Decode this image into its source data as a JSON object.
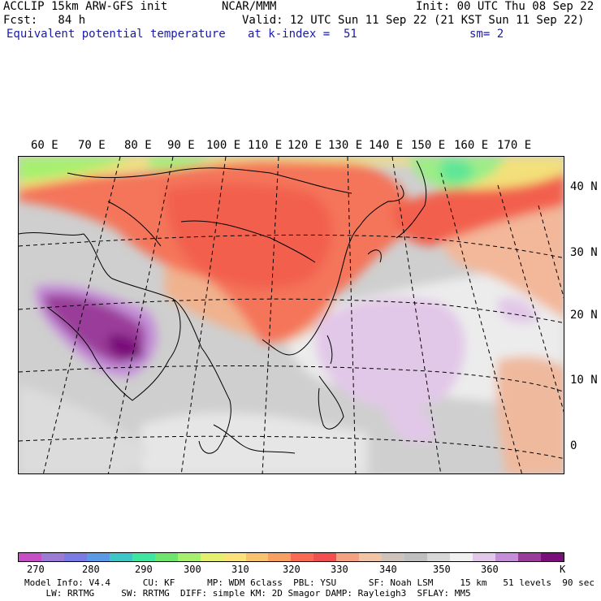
{
  "header": {
    "line1_left": "ACCLIP 15km ARW-GFS init",
    "line1_mid": "NCAR/MMM",
    "line1_right": "Init: 00 UTC Thu 08 Sep 22",
    "line2_left": "Fcst:   84 h",
    "line2_right": "Valid: 12 UTC Sun 11 Sep 22 (21 KST Sun 11 Sep 22)",
    "line3_left": "Equivalent potential temperature",
    "line3_mid": "at k-index =  51",
    "line3_right": "sm= 2"
  },
  "map": {
    "lon_labels": [
      "60 E",
      "70 E",
      "80 E",
      "90 E",
      "100 E",
      "110 E",
      "120 E",
      "130 E",
      "140 E",
      "150 E",
      "160 E",
      "170 E"
    ],
    "lat_labels": [
      "40 N",
      "30 N",
      "20 N",
      "10 N",
      "0"
    ]
  },
  "colorbar": {
    "colors": [
      "#c64fc6",
      "#9c7bd6",
      "#7b7be6",
      "#5a9ae6",
      "#3fc7c7",
      "#3fe6a0",
      "#6ee66e",
      "#a6f06e",
      "#e6f070",
      "#fbe27a",
      "#f9c36e",
      "#f9a060",
      "#f96a52",
      "#f25050",
      "#f4a182",
      "#f0c4a4",
      "#cfc4bc",
      "#bfbfbf",
      "#d8d8d8",
      "#f0f0f0",
      "#e2c8e8",
      "#c48ed8",
      "#9a3c9a",
      "#7a0f7a"
    ],
    "ticks": [
      "270",
      "280",
      "290",
      "300",
      "310",
      "320",
      "330",
      "340",
      "350",
      "360",
      "K"
    ],
    "unit": "K"
  },
  "footer": {
    "line1": "Model Info: V4.4      CU: KF      MP: WDM 6class  PBL: YSU      SF: Noah LSM     15 km   51 levels  90 sec",
    "line2": "    LW: RRTMG     SW: RRTMG  DIFF: simple KM: 2D Smagor DAMP: Rayleigh3  SFLAY: MM5"
  }
}
